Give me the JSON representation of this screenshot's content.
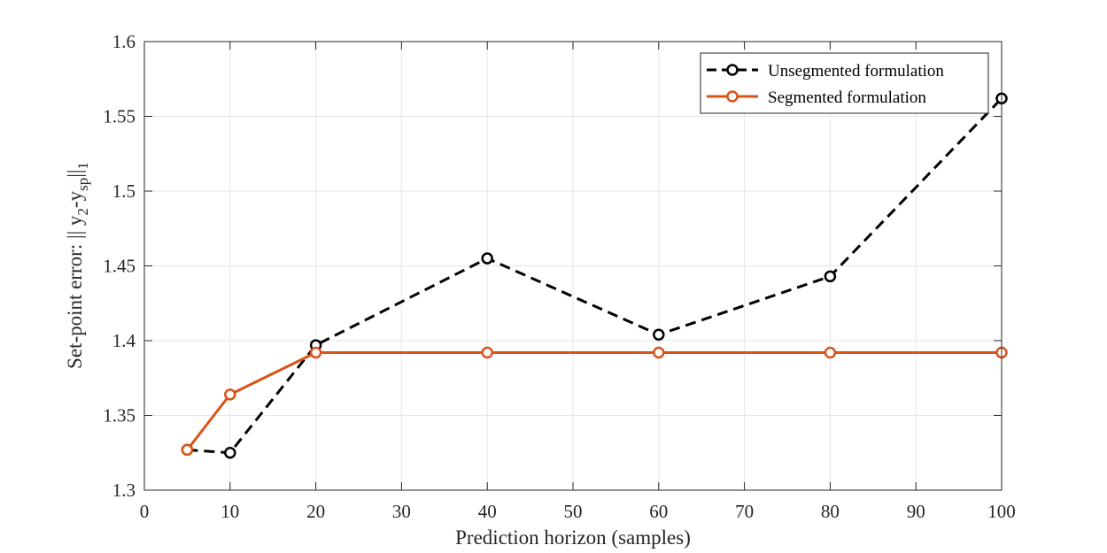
{
  "chart_data": {
    "type": "line",
    "xlabel": "Prediction horizon (samples)",
    "ylabel": {
      "prefix": "Set-point error: || y",
      "sub1": "2",
      "mid": "-y",
      "sub2": "sp",
      "bars": "||",
      "sub3": "1"
    },
    "xlim": [
      0,
      100
    ],
    "ylim": [
      1.3,
      1.6
    ],
    "xticks": [
      0,
      10,
      20,
      30,
      40,
      50,
      60,
      70,
      80,
      90,
      100
    ],
    "yticks": [
      1.3,
      1.35,
      1.4,
      1.45,
      1.5,
      1.55,
      1.6
    ],
    "xtick_labels": [
      "0",
      "10",
      "20",
      "30",
      "40",
      "50",
      "60",
      "70",
      "80",
      "90",
      "100"
    ],
    "ytick_labels": [
      "1.3",
      "1.35",
      "1.4",
      "1.45",
      "1.5",
      "1.55",
      "1.6"
    ],
    "grid": true,
    "legend_position": "top-right",
    "series": [
      {
        "name": "Unsegmented formulation",
        "color": "#000000",
        "line_style": "dashed",
        "marker": "circle",
        "x": [
          5,
          10,
          20,
          40,
          60,
          80,
          100
        ],
        "y": [
          1.327,
          1.325,
          1.397,
          1.455,
          1.404,
          1.443,
          1.562
        ]
      },
      {
        "name": "Segmented formulation",
        "color": "#D95319",
        "line_style": "solid",
        "marker": "circle",
        "x": [
          5,
          10,
          20,
          40,
          60,
          80,
          100
        ],
        "y": [
          1.327,
          1.364,
          1.392,
          1.392,
          1.392,
          1.392,
          1.392
        ]
      }
    ]
  }
}
